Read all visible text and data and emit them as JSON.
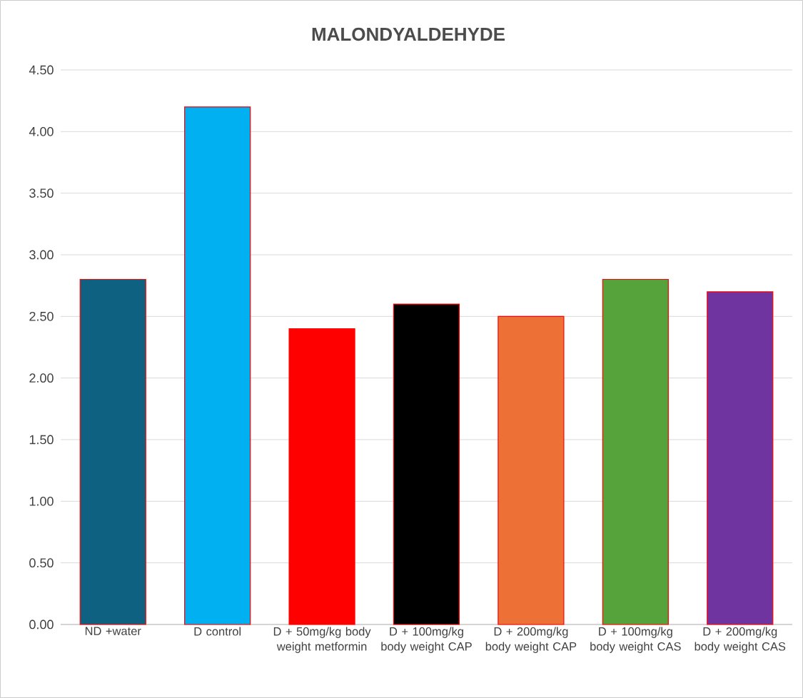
{
  "chart_data": {
    "type": "bar",
    "title": "MALONDYALDEHYDE",
    "categories": [
      "ND +water",
      "D control",
      "D + 50mg/kg body weight metformin",
      "D + 100mg/kg body weight CAP",
      "D + 200mg/kg body weight CAP",
      "D + 100mg/kg body weight CAS",
      "D + 200mg/kg body weight CAS"
    ],
    "values": [
      2.8,
      4.2,
      2.4,
      2.6,
      2.5,
      2.8,
      2.7
    ],
    "colors": [
      "#0e6180",
      "#00b0f0",
      "#ff0000",
      "#000000",
      "#ed7136",
      "#55a33a",
      "#7034a0"
    ],
    "ylim": [
      0,
      4.5
    ],
    "yticks": [
      {
        "value": 0,
        "label": "0.00"
      },
      {
        "value": 0.5,
        "label": "0.50"
      },
      {
        "value": 1,
        "label": "1.00"
      },
      {
        "value": 1.5,
        "label": "1.50"
      },
      {
        "value": 2,
        "label": "2.00"
      },
      {
        "value": 2.5,
        "label": "2.50"
      },
      {
        "value": 3,
        "label": "3.00"
      },
      {
        "value": 3.5,
        "label": "3.50"
      },
      {
        "value": 4,
        "label": "4.00"
      },
      {
        "value": 4.5,
        "label": "4.50"
      }
    ],
    "grid": "y"
  }
}
